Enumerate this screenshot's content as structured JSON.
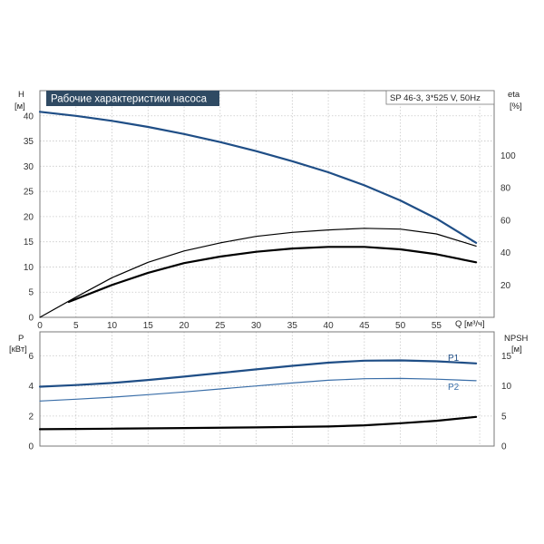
{
  "colors": {
    "blue": "#1f4e86",
    "black": "#000000",
    "blue_light": "#3a6ea8"
  },
  "chart_data": [
    {
      "type": "line",
      "title": "Рабочие характеристики насоса",
      "info": "SP 46-3, 3*525 V, 50Hz",
      "xlabel": "Q [м³/ч]",
      "ylabel": {
        "line1": "H",
        "line2": "[м]"
      },
      "ylabel_right": {
        "line1": "eta",
        "line2": "[%]"
      },
      "xlim": [
        0,
        63
      ],
      "ylim": [
        0,
        45
      ],
      "ylim_right": [
        0,
        140
      ],
      "x_ticks": [
        "0",
        "5",
        "10",
        "15",
        "20",
        "25",
        "30",
        "35",
        "40",
        "45",
        "50",
        "55"
      ],
      "y_ticks": [
        "0",
        "5",
        "10",
        "15",
        "20",
        "25",
        "30",
        "35",
        "40"
      ],
      "y_right_ticks": [
        "20",
        "40",
        "60",
        "80",
        "100"
      ],
      "grid": true,
      "series": [
        {
          "axis": "left",
          "color": "#1f4e86",
          "x": [
            0,
            5,
            10,
            15,
            20,
            25,
            30,
            35,
            40,
            45,
            50,
            55,
            60.5
          ],
          "values": [
            40.8,
            40.0,
            39.0,
            37.8,
            36.4,
            34.8,
            33.0,
            31.0,
            28.8,
            26.2,
            23.2,
            19.6,
            14.8
          ]
        },
        {
          "axis": "right",
          "color": "#000000",
          "x": [
            0,
            5,
            10,
            15,
            20,
            25,
            30,
            35,
            40,
            45,
            50,
            55,
            60.5
          ],
          "values": [
            0,
            12.5,
            24.5,
            34.0,
            41.0,
            46.0,
            50.0,
            52.5,
            54.0,
            55.0,
            54.5,
            51.5,
            44.0
          ]
        },
        {
          "axis": "right",
          "color": "#000000",
          "x": [
            4,
            10,
            15,
            20,
            25,
            30,
            35,
            40,
            45,
            50,
            55,
            60.5
          ],
          "values": [
            9.5,
            20.0,
            27.5,
            33.5,
            37.5,
            40.5,
            42.5,
            43.5,
            43.5,
            42.0,
            39.0,
            34.0
          ]
        }
      ]
    },
    {
      "type": "line",
      "xlim": [
        0,
        63
      ],
      "ylim": [
        0,
        7.6
      ],
      "ylim_right": [
        0,
        19
      ],
      "ylabel": {
        "line1": "P",
        "line2": "[кВт]"
      },
      "ylabel_right": {
        "line1": "NPSH",
        "line2": "[м]"
      },
      "y_ticks": [
        "0",
        "2",
        "4",
        "6"
      ],
      "y_right_ticks": [
        "0",
        "5",
        "10",
        "15"
      ],
      "grid": true,
      "series": [
        {
          "name": "P1",
          "axis": "left",
          "color": "#1f4e86",
          "x": [
            0,
            5,
            10,
            15,
            20,
            25,
            30,
            35,
            40,
            45,
            50,
            55,
            60.5
          ],
          "values": [
            3.95,
            4.06,
            4.2,
            4.4,
            4.62,
            4.86,
            5.1,
            5.34,
            5.55,
            5.68,
            5.7,
            5.64,
            5.5
          ]
        },
        {
          "name": "P2",
          "axis": "left",
          "color": "#3a6ea8",
          "x": [
            0,
            5,
            10,
            15,
            20,
            25,
            30,
            35,
            40,
            45,
            50,
            55,
            60.5
          ],
          "values": [
            3.0,
            3.12,
            3.25,
            3.42,
            3.6,
            3.8,
            4.0,
            4.2,
            4.38,
            4.48,
            4.5,
            4.45,
            4.35
          ]
        },
        {
          "axis": "right",
          "color": "#000000",
          "x": [
            0,
            5,
            10,
            20,
            30,
            40,
            45,
            50,
            55,
            60.5
          ],
          "values": [
            2.8,
            2.85,
            2.9,
            3.0,
            3.1,
            3.25,
            3.45,
            3.8,
            4.2,
            4.85
          ]
        }
      ]
    }
  ]
}
